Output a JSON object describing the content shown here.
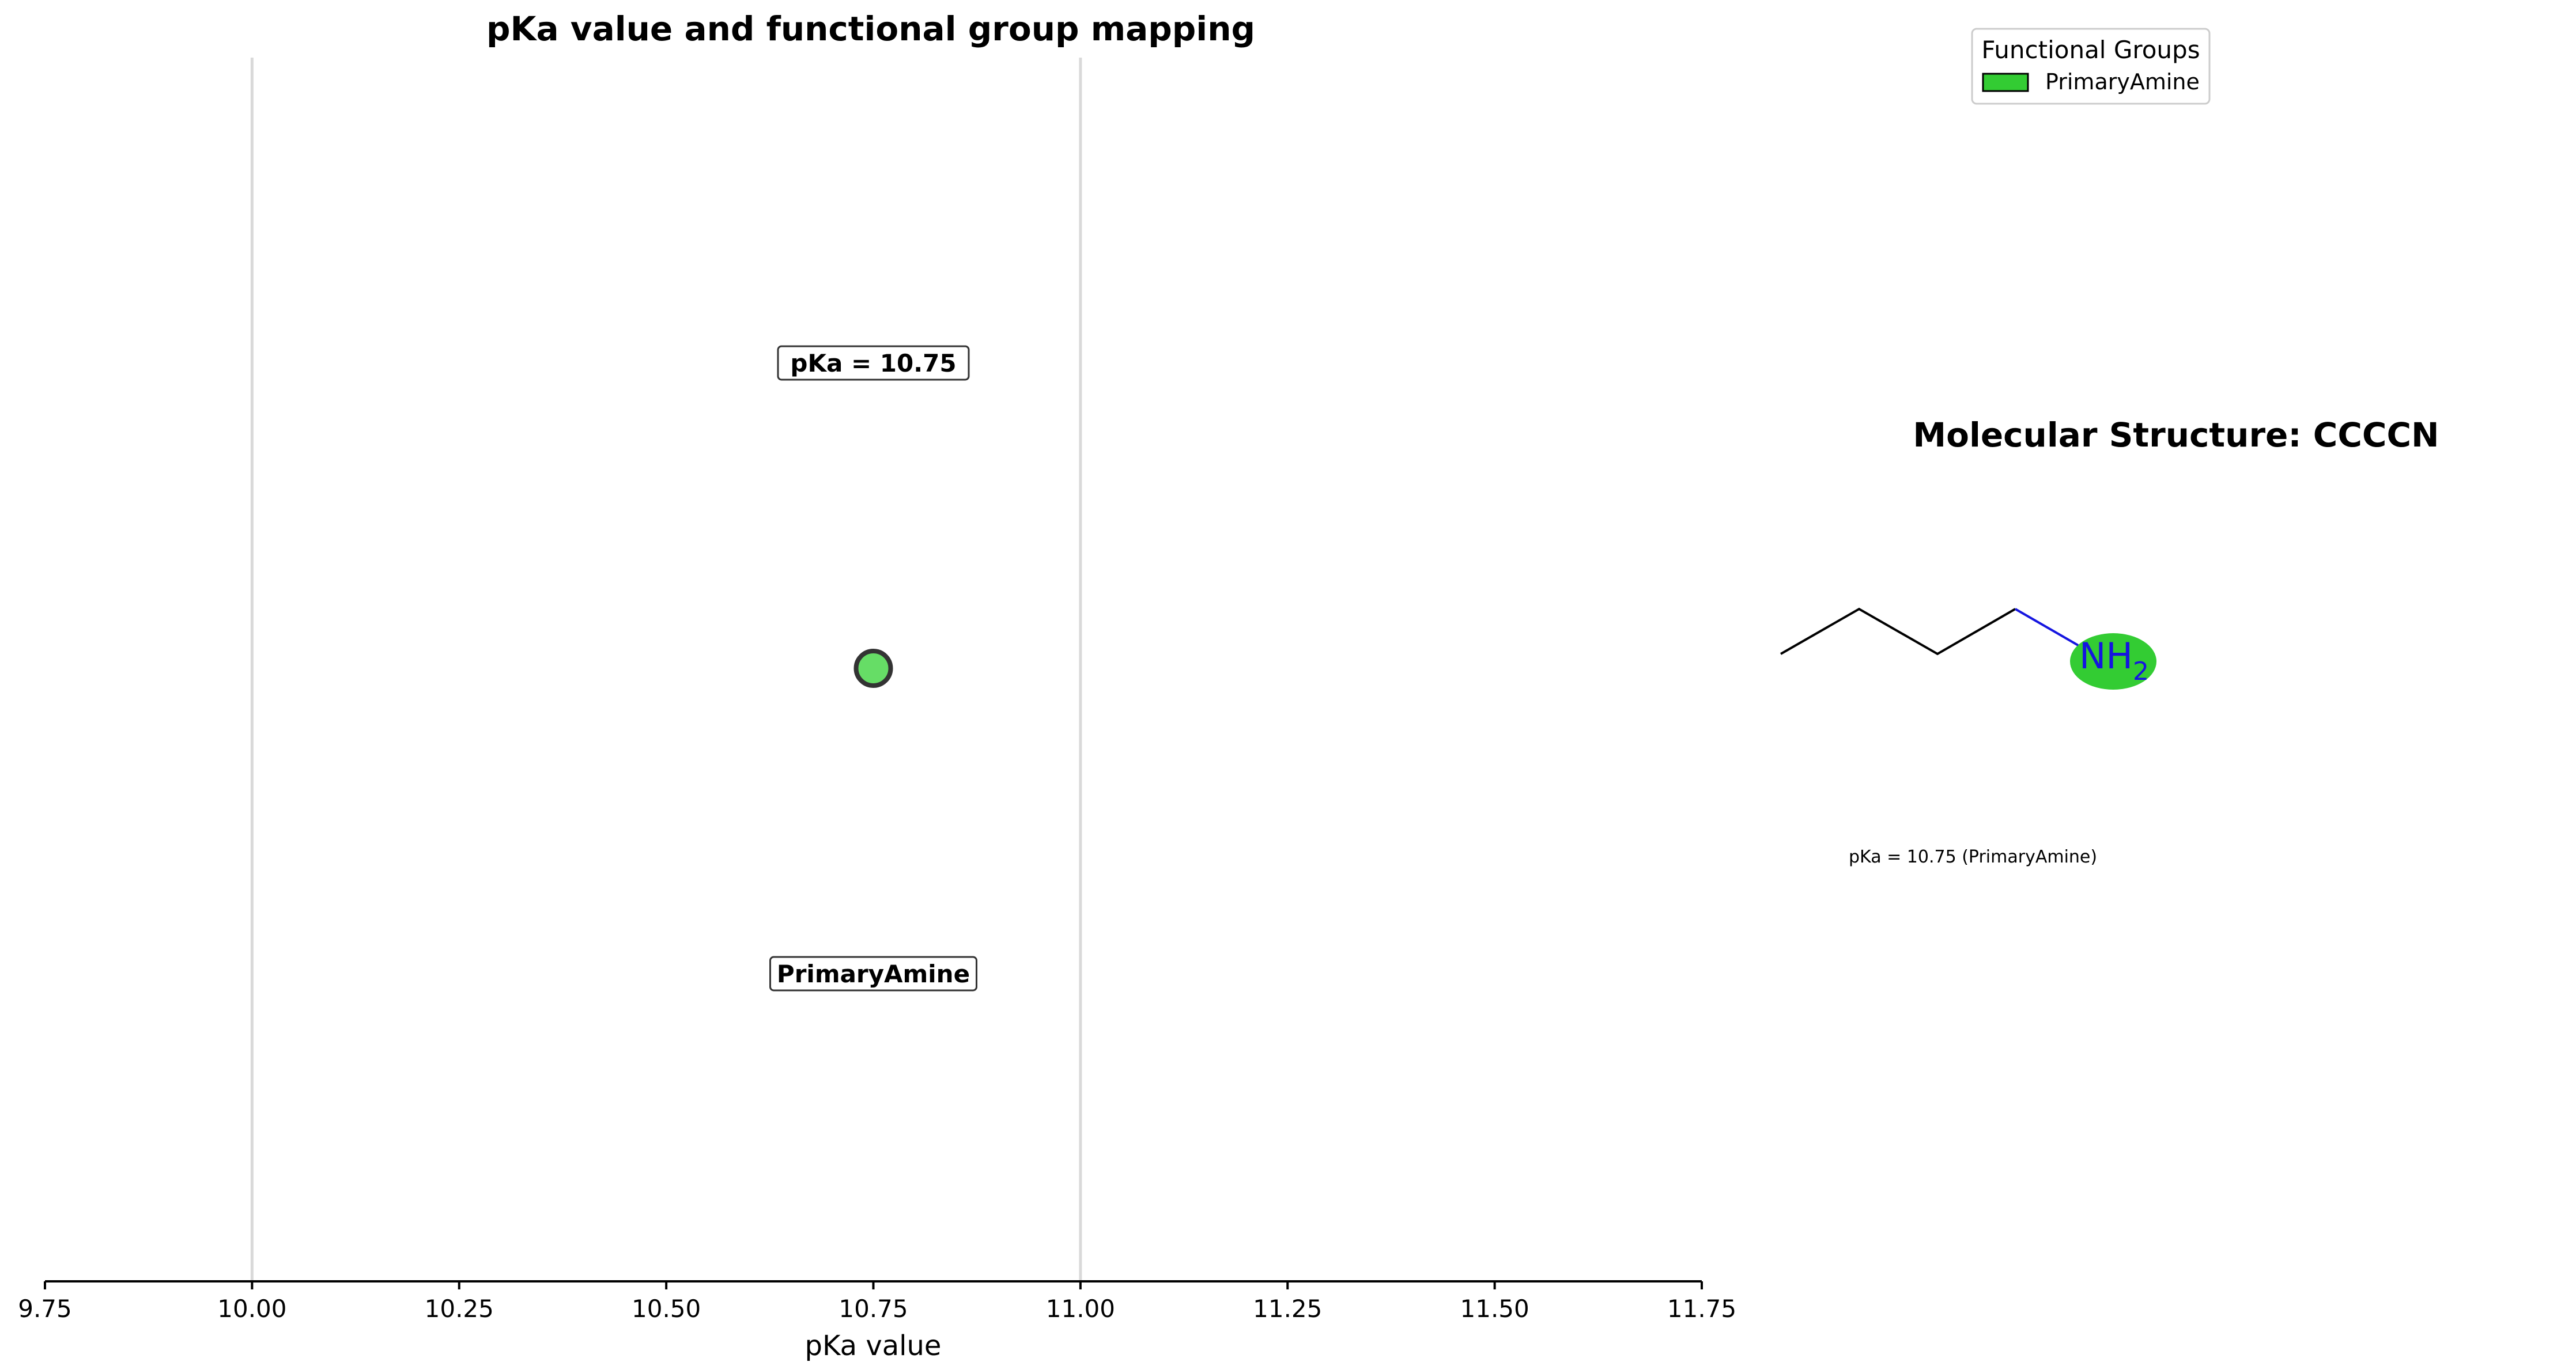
{
  "chart_data": {
    "type": "scatter",
    "title": "pKa value and functional group mapping",
    "xlabel": "pKa value",
    "xlim": [
      9.75,
      11.75
    ],
    "xticks": [
      "9.75",
      "10.00",
      "10.25",
      "10.50",
      "10.75",
      "11.00",
      "11.25",
      "11.50",
      "11.75"
    ],
    "reference_lines": [
      10.0,
      11.0
    ],
    "points": [
      {
        "x": 10.75,
        "group": "PrimaryAmine",
        "value_label": "pKa = 10.75",
        "group_label": "PrimaryAmine"
      }
    ],
    "grid": false,
    "legend": {
      "title": "Functional Groups",
      "placement": "top-right",
      "entries": [
        "PrimaryAmine"
      ]
    },
    "colors": {
      "primary_amine": "#33cc33",
      "point_fill": "#66dd66",
      "reference_line": "#d9d9d9",
      "nitrogen": "#1515e0"
    }
  },
  "structure": {
    "title": "Molecular Structure: CCCCN",
    "smiles": "CCCCN",
    "atom_label": "NH",
    "atom_subscript": "2",
    "caption": "pKa = 10.75 (PrimaryAmine)"
  }
}
